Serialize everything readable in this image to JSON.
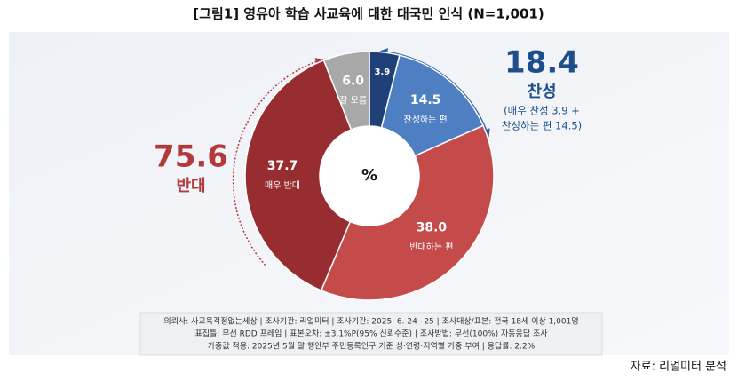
{
  "chart_data": {
    "type": "pie",
    "title": "[그림1] 영유아 학습 사교육에 대한 대국민 인식 (N=1,001)",
    "center_label": "%",
    "categories": [
      null,
      "찬성하는 편",
      "반대하는 편",
      "매우 반대",
      "잘 모름"
    ],
    "values": [
      3.9,
      14.5,
      38.0,
      37.7,
      6.0
    ],
    "value_labels": [
      "3.9",
      "14.5",
      "38.0",
      "37.7",
      "6.0"
    ],
    "colors": [
      "#1f3f78",
      "#4f7fc3",
      "#c54b4b",
      "#982d31",
      "#a8a8a8"
    ],
    "annotations": [
      {
        "value": 18.4,
        "label": "찬성",
        "note": [
          "(매우 찬성 3.9 +",
          "찬성하는 편 14.5)"
        ],
        "color": "#1f4e8c"
      },
      {
        "value": 75.6,
        "label": "반대",
        "color": "#b33a3a"
      }
    ],
    "footnote": [
      "의뢰사: 사교육걱정없는세상 | 조사기관: 리얼미터 | 조사기간: 2025. 6. 24~25 | 조사대상/표본: 전국 18세 이상 1,001명",
      "표집틀: 무선 RDD 프레임 | 표본오차: ±3.1%P(95% 신뢰수준) | 조사방법: 무선(100%) 자동응답 조사",
      "가중값 적용: 2025년 5월 말 행안부 주민등록인구 기준 성·연령·지역별 가중 부여 | 응답률: 2.2%"
    ],
    "source": "자료: 리얼미터 분석"
  }
}
